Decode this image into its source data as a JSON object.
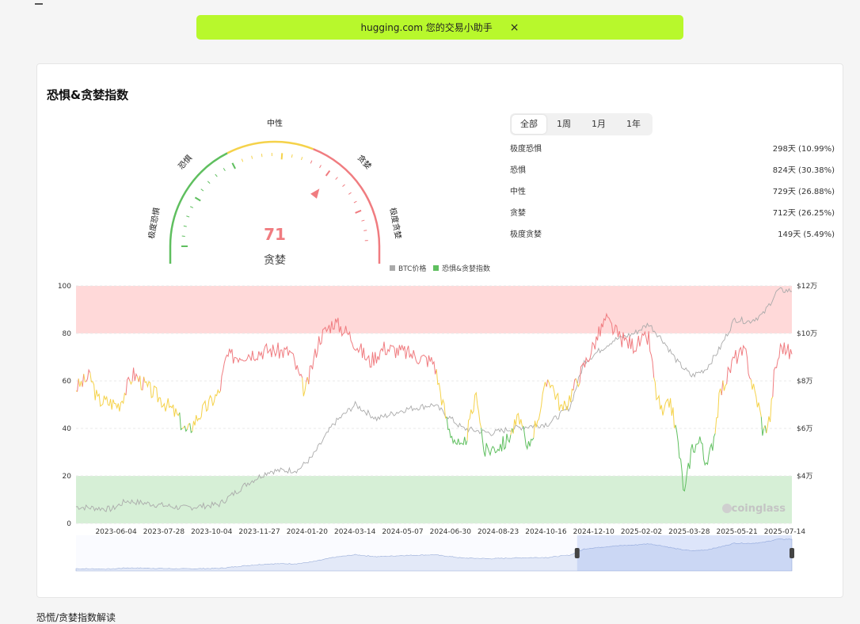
{
  "banner": {
    "text": "hugging.com 您的交易小助手",
    "close": "×"
  },
  "card": {
    "title": "恐惧&贪婪指数"
  },
  "gauge": {
    "value": 71,
    "value_text": "71",
    "label": "贪婪",
    "zones": [
      "极度恐惧",
      "恐惧",
      "中性",
      "贪婪",
      "极度贪婪"
    ]
  },
  "tabs": [
    "全部",
    "1周",
    "1月",
    "1年"
  ],
  "active_tab": 0,
  "stats": [
    {
      "name": "极度恐惧",
      "value": "298天 (10.99%)"
    },
    {
      "name": "恐惧",
      "value": "824天 (30.38%)"
    },
    {
      "name": "中性",
      "value": "729天 (26.88%)"
    },
    {
      "name": "贪婪",
      "value": "712天 (26.25%)"
    },
    {
      "name": "极度贪婪",
      "value": "149天 (5.49%)"
    }
  ],
  "footer": {
    "text": "恐慌/贪婪指数解读"
  },
  "chart_data": {
    "type": "line",
    "legend": [
      "BTC价格",
      "恐惧&贪婪指数"
    ],
    "legend_placement": "top-center",
    "x_ticks": [
      "2023-06-04",
      "2023-07-28",
      "2023-10-04",
      "2023-11-27",
      "2024-01-20",
      "2024-03-14",
      "2024-05-07",
      "2024-06-30",
      "2024-08-23",
      "2024-10-16",
      "2024-12-10",
      "2025-02-02",
      "2025-03-28",
      "2025-05-21",
      "2025-07-14"
    ],
    "y_left_ticks": [
      "0",
      "20",
      "40",
      "60",
      "80",
      "100"
    ],
    "y_left_range": [
      0,
      100
    ],
    "y_right_ticks": [
      "$4万",
      "$6万",
      "$8万",
      "$10万",
      "$12万"
    ],
    "y_right_range": [
      20000,
      120000
    ],
    "bands": [
      {
        "from": 80,
        "to": 100,
        "color": "#ffd9d9"
      },
      {
        "from": 0,
        "to": 20,
        "color": "#d6efd6"
      }
    ],
    "thresholds": {
      "fear": 40,
      "greed": 60
    },
    "colors": {
      "greed": "#f07c80",
      "neutral": "#f5d24a",
      "fear": "#5fbf5f",
      "btc": "#aaaaaa"
    },
    "watermark": "coinglass",
    "fng_anchors": [
      {
        "t": 0.0,
        "v": 57
      },
      {
        "t": 0.02,
        "v": 62
      },
      {
        "t": 0.03,
        "v": 52
      },
      {
        "t": 0.06,
        "v": 50
      },
      {
        "t": 0.08,
        "v": 63
      },
      {
        "t": 0.1,
        "v": 57
      },
      {
        "t": 0.12,
        "v": 52
      },
      {
        "t": 0.14,
        "v": 46
      },
      {
        "t": 0.155,
        "v": 38
      },
      {
        "t": 0.17,
        "v": 45
      },
      {
        "t": 0.2,
        "v": 55
      },
      {
        "t": 0.21,
        "v": 70
      },
      {
        "t": 0.25,
        "v": 72
      },
      {
        "t": 0.27,
        "v": 73
      },
      {
        "t": 0.3,
        "v": 72
      },
      {
        "t": 0.32,
        "v": 55
      },
      {
        "t": 0.34,
        "v": 78
      },
      {
        "t": 0.36,
        "v": 85
      },
      {
        "t": 0.38,
        "v": 80
      },
      {
        "t": 0.41,
        "v": 68
      },
      {
        "t": 0.43,
        "v": 74
      },
      {
        "t": 0.46,
        "v": 72
      },
      {
        "t": 0.5,
        "v": 68
      },
      {
        "t": 0.52,
        "v": 40
      },
      {
        "t": 0.54,
        "v": 30
      },
      {
        "t": 0.56,
        "v": 55
      },
      {
        "t": 0.57,
        "v": 30
      },
      {
        "t": 0.6,
        "v": 34
      },
      {
        "t": 0.62,
        "v": 45
      },
      {
        "t": 0.63,
        "v": 30
      },
      {
        "t": 0.65,
        "v": 50
      },
      {
        "t": 0.66,
        "v": 62
      },
      {
        "t": 0.68,
        "v": 47
      },
      {
        "t": 0.7,
        "v": 60
      },
      {
        "t": 0.72,
        "v": 73
      },
      {
        "t": 0.74,
        "v": 86
      },
      {
        "t": 0.76,
        "v": 78
      },
      {
        "t": 0.78,
        "v": 75
      },
      {
        "t": 0.8,
        "v": 78
      },
      {
        "t": 0.81,
        "v": 55
      },
      {
        "t": 0.82,
        "v": 45
      },
      {
        "t": 0.83,
        "v": 52
      },
      {
        "t": 0.84,
        "v": 36
      },
      {
        "t": 0.85,
        "v": 12
      },
      {
        "t": 0.86,
        "v": 32
      },
      {
        "t": 0.875,
        "v": 35
      },
      {
        "t": 0.88,
        "v": 22
      },
      {
        "t": 0.89,
        "v": 35
      },
      {
        "t": 0.9,
        "v": 55
      },
      {
        "t": 0.91,
        "v": 62
      },
      {
        "t": 0.92,
        "v": 70
      },
      {
        "t": 0.935,
        "v": 72
      },
      {
        "t": 0.945,
        "v": 58
      },
      {
        "t": 0.955,
        "v": 48
      },
      {
        "t": 0.96,
        "v": 38
      },
      {
        "t": 0.97,
        "v": 45
      },
      {
        "t": 0.975,
        "v": 62
      },
      {
        "t": 0.985,
        "v": 75
      },
      {
        "t": 1.0,
        "v": 71
      }
    ],
    "btc_anchors": [
      {
        "t": 0.0,
        "v": 27000
      },
      {
        "t": 0.05,
        "v": 26000
      },
      {
        "t": 0.07,
        "v": 29500
      },
      {
        "t": 0.15,
        "v": 26500
      },
      {
        "t": 0.2,
        "v": 28000
      },
      {
        "t": 0.24,
        "v": 37000
      },
      {
        "t": 0.27,
        "v": 42000
      },
      {
        "t": 0.31,
        "v": 42500
      },
      {
        "t": 0.33,
        "v": 48000
      },
      {
        "t": 0.36,
        "v": 62000
      },
      {
        "t": 0.39,
        "v": 70000
      },
      {
        "t": 0.42,
        "v": 64000
      },
      {
        "t": 0.46,
        "v": 68000
      },
      {
        "t": 0.5,
        "v": 70000
      },
      {
        "t": 0.54,
        "v": 60000
      },
      {
        "t": 0.58,
        "v": 58000
      },
      {
        "t": 0.61,
        "v": 60000
      },
      {
        "t": 0.66,
        "v": 62000
      },
      {
        "t": 0.69,
        "v": 69000
      },
      {
        "t": 0.71,
        "v": 88000
      },
      {
        "t": 0.75,
        "v": 97000
      },
      {
        "t": 0.78,
        "v": 100000
      },
      {
        "t": 0.8,
        "v": 104000
      },
      {
        "t": 0.82,
        "v": 97000
      },
      {
        "t": 0.84,
        "v": 88000
      },
      {
        "t": 0.86,
        "v": 82000
      },
      {
        "t": 0.88,
        "v": 85000
      },
      {
        "t": 0.9,
        "v": 94000
      },
      {
        "t": 0.92,
        "v": 106000
      },
      {
        "t": 0.94,
        "v": 105000
      },
      {
        "t": 0.96,
        "v": 108000
      },
      {
        "t": 0.98,
        "v": 118000
      },
      {
        "t": 1.0,
        "v": 118000
      }
    ],
    "zoom_range": [
      0.7,
      1.0
    ]
  }
}
